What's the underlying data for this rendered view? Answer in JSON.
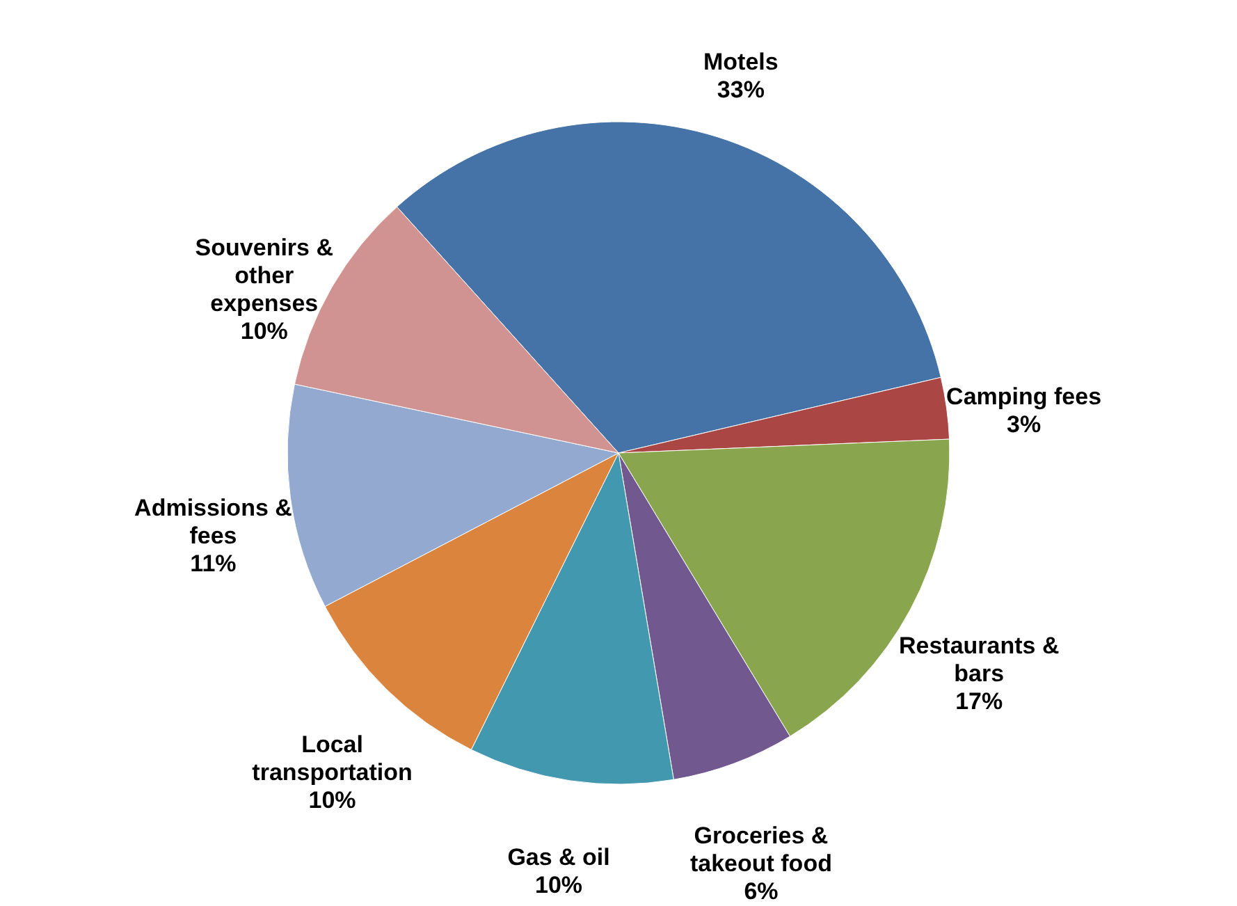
{
  "chart_data": {
    "type": "pie",
    "categories": [
      "Motels",
      "Camping fees",
      "Restaurants & bars",
      "Groceries & takeout food",
      "Gas & oil",
      "Local transportation",
      "Admissions & fees",
      "Souvenirs & other expenses"
    ],
    "values": [
      33,
      3,
      17,
      6,
      10,
      10,
      11,
      10
    ],
    "colors": [
      "#4572a7",
      "#aa4643",
      "#89a54e",
      "#71588f",
      "#4198af",
      "#db843d",
      "#93a9cf",
      "#d19392"
    ],
    "value_labels": [
      "33%",
      "3%",
      "17%",
      "6%",
      "10%",
      "10%",
      "11%",
      "10%"
    ]
  }
}
